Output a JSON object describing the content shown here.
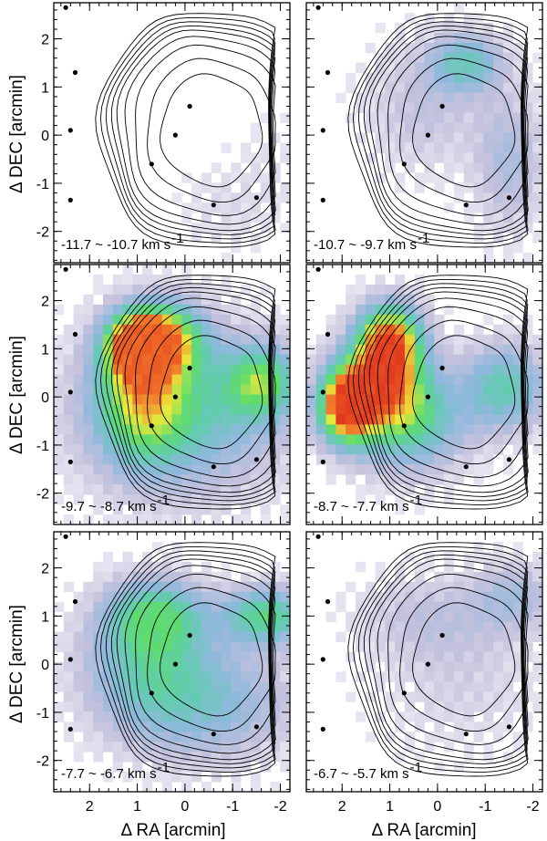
{
  "chart_data": {
    "type": "heatmap",
    "layout": "3x2 channel map grid",
    "xlabel": "Δ RA [arcmin]",
    "ylabel": "Δ DEC [arcmin]",
    "xlim": [
      2.75,
      -2.2
    ],
    "ylim": [
      -2.65,
      2.75
    ],
    "xticks": [
      2,
      1,
      0,
      -1,
      -2
    ],
    "yticks": [
      2,
      1,
      0,
      -1,
      -2
    ],
    "colormap": [
      "#ffffff",
      "#c6c2dd",
      "#8fb8dc",
      "#62ccb0",
      "#5fdc6a",
      "#e9e83a",
      "#f27a2a",
      "#e23a1e"
    ],
    "overlay": "contours",
    "panels": [
      {
        "velocity": "-11.7 ~ -10.7 km s",
        "unit_exp": "-1",
        "peak": 0.1,
        "blobs": [
          {
            "x": -0.8,
            "y": -1.5,
            "amp": 0.5,
            "sx": 0.6,
            "sy": 0.6
          },
          {
            "x": -1.8,
            "y": -0.8,
            "amp": 0.35,
            "sx": 0.5,
            "sy": 0.8
          }
        ]
      },
      {
        "velocity": "-10.7 ~ -9.7 km s",
        "unit_exp": "-1",
        "peak": 0.35,
        "blobs": [
          {
            "x": -0.6,
            "y": 1.5,
            "amp": 1.0,
            "sx": 0.5,
            "sy": 0.4
          },
          {
            "x": -1.5,
            "y": -0.5,
            "amp": 0.5,
            "sx": 0.5,
            "sy": 1.0
          },
          {
            "x": 0.3,
            "y": 0.6,
            "amp": 0.35,
            "sx": 0.8,
            "sy": 0.9
          }
        ]
      },
      {
        "velocity": "-9.7 ~ -8.7 km s",
        "unit_exp": "-1",
        "peak": 0.88,
        "blobs": [
          {
            "x": 1.0,
            "y": 1.05,
            "amp": 1.0,
            "sx": 0.45,
            "sy": 0.45
          },
          {
            "x": 0.4,
            "y": 1.2,
            "amp": 0.65,
            "sx": 0.55,
            "sy": 0.5
          },
          {
            "x": 0.9,
            "y": 0.0,
            "amp": 0.55,
            "sx": 0.65,
            "sy": 0.9
          },
          {
            "x": -1.6,
            "y": 0.3,
            "amp": 0.55,
            "sx": 0.5,
            "sy": 0.5
          },
          {
            "x": 0.0,
            "y": -0.3,
            "amp": 0.4,
            "sx": 1.4,
            "sy": 1.1
          }
        ]
      },
      {
        "velocity": "-8.7 ~ -7.7 km s",
        "unit_exp": "-1",
        "peak": 0.95,
        "blobs": [
          {
            "x": 1.9,
            "y": -0.2,
            "amp": 1.0,
            "sx": 0.4,
            "sy": 0.5
          },
          {
            "x": 1.0,
            "y": 1.2,
            "amp": 0.85,
            "sx": 0.45,
            "sy": 0.5
          },
          {
            "x": 1.2,
            "y": 0.3,
            "amp": 0.75,
            "sx": 0.6,
            "sy": 0.6
          },
          {
            "x": 0.6,
            "y": -0.5,
            "amp": 0.45,
            "sx": 0.8,
            "sy": 0.7
          },
          {
            "x": -1.4,
            "y": 0.2,
            "amp": 0.4,
            "sx": 0.6,
            "sy": 0.6
          }
        ]
      },
      {
        "velocity": "-7.7 ~ -6.7 km s",
        "unit_exp": "-1",
        "peak": 0.52,
        "blobs": [
          {
            "x": -1.7,
            "y": 1.0,
            "amp": 0.9,
            "sx": 0.6,
            "sy": 0.4
          },
          {
            "x": 0.6,
            "y": 1.0,
            "amp": 0.8,
            "sx": 0.7,
            "sy": 0.5
          },
          {
            "x": 0.8,
            "y": 0.0,
            "amp": 0.6,
            "sx": 0.9,
            "sy": 0.9
          },
          {
            "x": -0.5,
            "y": -0.8,
            "amp": 0.5,
            "sx": 1.2,
            "sy": 0.8
          }
        ]
      },
      {
        "velocity": "-6.7 ~ -5.7 km s",
        "unit_exp": "-1",
        "peak": 0.22,
        "blobs": [
          {
            "x": -1.6,
            "y": 1.4,
            "amp": 0.8,
            "sx": 0.6,
            "sy": 0.5
          },
          {
            "x": 0.2,
            "y": 1.0,
            "amp": 0.5,
            "sx": 1.0,
            "sy": 0.6
          },
          {
            "x": -0.5,
            "y": -0.3,
            "amp": 0.35,
            "sx": 1.2,
            "sy": 1.0
          }
        ]
      }
    ]
  }
}
